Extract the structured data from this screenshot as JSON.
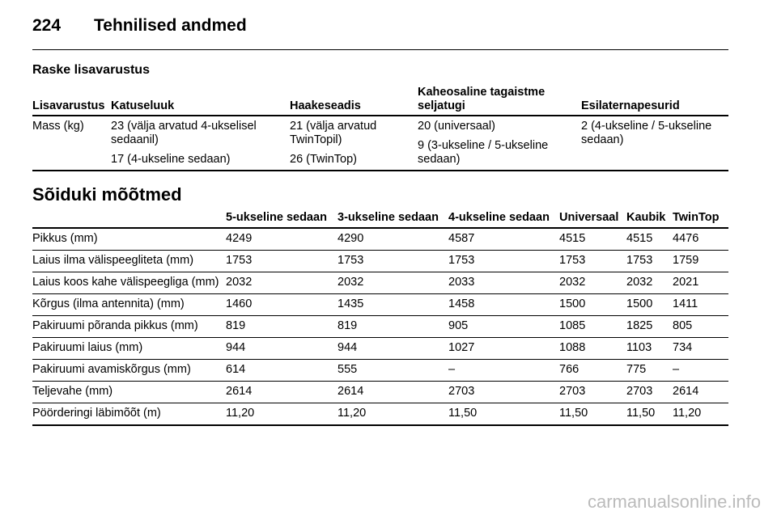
{
  "header": {
    "page_number": "224",
    "title": "Tehnilised andmed"
  },
  "section1": {
    "title": "Raske lisavarustus",
    "table": {
      "columns": [
        "Lisavarustus",
        "Katuseluuk",
        "Haakeseadis",
        "Kaheosaline tagaistme seljatugi",
        "Esilaternapesurid"
      ],
      "rows": [
        [
          [
            "Mass (kg)"
          ],
          [
            "23 (välja arvatud 4-ukselisel sedaanil)",
            "17 (4-ukseline sedaan)"
          ],
          [
            "21 (välja arvatud TwinTopil)",
            "26 (TwinTop)"
          ],
          [
            "20 (universaal)",
            "9 (3-ukseline / 5-ukseline sedaan)"
          ],
          [
            "2 (4-ukseline / 5-ukseline sedaan)"
          ]
        ]
      ]
    }
  },
  "section2": {
    "title": "Sõiduki mõõtmed",
    "table": {
      "columns": [
        "",
        "5-ukseline sedaan",
        "3-ukseline sedaan",
        "4-ukseline sedaan",
        "Universaal",
        "Kaubik",
        "TwinTop"
      ],
      "rows": [
        [
          "Pikkus (mm)",
          "4249",
          "4290",
          "4587",
          "4515",
          "4515",
          "4476"
        ],
        [
          "Laius ilma välispeegliteta (mm)",
          "1753",
          "1753",
          "1753",
          "1753",
          "1753",
          "1759"
        ],
        [
          "Laius koos kahe välispeegliga (mm)",
          "2032",
          "2032",
          "2033",
          "2032",
          "2032",
          "2021"
        ],
        [
          "Kõrgus (ilma antennita) (mm)",
          "1460",
          "1435",
          "1458",
          "1500",
          "1500",
          "1411"
        ],
        [
          "Pakiruumi põranda pikkus (mm)",
          "819",
          "819",
          "905",
          "1085",
          "1825",
          "805"
        ],
        [
          "Pakiruumi laius (mm)",
          "944",
          "944",
          "1027",
          "1088",
          "1103",
          "734"
        ],
        [
          "Pakiruumi avamiskõrgus (mm)",
          "614",
          "555",
          "–",
          "766",
          "775",
          "–"
        ],
        [
          "Teljevahe (mm)",
          "2614",
          "2614",
          "2703",
          "2703",
          "2703",
          "2614"
        ],
        [
          "Pöörderingi läbimõõt (m)",
          "11,20",
          "11,20",
          "11,50",
          "11,50",
          "11,50",
          "11,20"
        ]
      ]
    }
  },
  "footer": {
    "watermark": "carmanualsonline.info"
  }
}
